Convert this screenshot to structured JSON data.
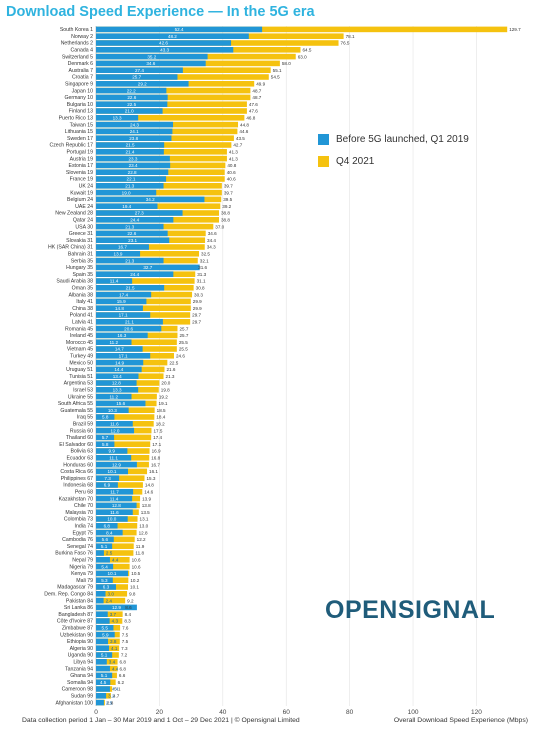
{
  "header": {
    "title": "Download Speed Experience — In the 5G era"
  },
  "legend": {
    "items": [
      {
        "label": "Before 5G launched, Q1 2019",
        "color": "#2196d6",
        "icon": "square-swatch"
      },
      {
        "label": "Q4 2021",
        "color": "#f5c20f",
        "icon": "square-swatch"
      }
    ]
  },
  "logo": {
    "text": "OPENSIGNAL",
    "color": "#1f5c7a"
  },
  "footer": {
    "note": "Data collection period 1 Jan – 30 Mar 2019 and 1 Oct – 29 Dec 2021 | © Opensignal Limited"
  },
  "chart_data": {
    "type": "bar",
    "orientation": "horizontal",
    "title": "Download Speed Experience — In the 5G era",
    "xlabel": "Overall Download Speed Experience (Mbps)",
    "ylabel": "",
    "xlim": [
      0,
      135
    ],
    "xticks": [
      0,
      20,
      40,
      60,
      80,
      100,
      120
    ],
    "grid": true,
    "legend_position": "right",
    "categories": [
      "South Korea 1",
      "Norway 2",
      "Netherlands 2",
      "Canada 4",
      "Switzerland 5",
      "Denmark 6",
      "Australia 7",
      "Croatia 7",
      "Singapore 9",
      "Japan 10",
      "Germany 10",
      "Bulgaria 10",
      "Finland 13",
      "Puerto Rico 13",
      "Taiwan 15",
      "Lithuania 15",
      "Sweden 17",
      "Czech Republic 17",
      "Portugal 19",
      "Austria 19",
      "Estonia 17",
      "Slovenia 19",
      "France 19",
      "UK 24",
      "Kuwait 19",
      "Belgium 24",
      "UAE 24",
      "New Zealand 28",
      "Qatar 24",
      "USA 30",
      "Greece 31",
      "Slovakia 31",
      "HK (SAR China) 31",
      "Bahrain 31",
      "Serbia 35",
      "Hungary 35",
      "Spain 35",
      "Saudi Arabia 38",
      "Oman 35",
      "Albania 38",
      "Italy 41",
      "China 38",
      "Poland 41",
      "Latvia 41",
      "Romania 45",
      "Ireland 45",
      "Morocco 45",
      "Vietnam 45",
      "Turkey 49",
      "Mexico 50",
      "Uruguay 51",
      "Tunisia 51",
      "Argentina 53",
      "Israel 53",
      "Ukraine 55",
      "South Africa 55",
      "Guatemala 55",
      "Iraq 55",
      "Brazil 59",
      "Russia 60",
      "Thailand 60",
      "El Salvador 60",
      "Bolivia 63",
      "Ecuador 63",
      "Honduras 60",
      "Costa Rica 66",
      "Philippines 67",
      "Indonesia 68",
      "Peru 68",
      "Kazakhstan 70",
      "Chile 70",
      "Malaysia 70",
      "Colombia 73",
      "India 74",
      "Egypt 75",
      "Cambodia 76",
      "Senegal 74",
      "Burkina Faso 76",
      "Nepal 79",
      "Nigeria 79",
      "Kenya 79",
      "Mali 79",
      "Madagascar 79",
      "Dem. Rep. Congo 84",
      "Pakistan 84",
      "Sri Lanka 86",
      "Bangladesh 87",
      "Côte d'Ivoire 87",
      "Zimbabwe 87",
      "Uzbekistan 90",
      "Ethiopia 90",
      "Algeria 90",
      "Uganda 90",
      "Libya 94",
      "Tanzania 94",
      "Ghana 94",
      "Somalia 94",
      "Cameroon 98",
      "Sudan 99",
      "Afghanistan 100"
    ],
    "series": [
      {
        "name": "Before 5G launched, Q1 2019",
        "color": "#2196d6",
        "values": [
          52.4,
          48.2,
          42.6,
          43.3,
          35.2,
          34.6,
          27.4,
          25.7,
          29.2,
          22.2,
          22.6,
          22.5,
          21.0,
          13.3,
          24.3,
          24.1,
          23.8,
          21.5,
          21.4,
          23.3,
          23.4,
          22.8,
          22.1,
          21.3,
          19.0,
          34.2,
          19.4,
          27.3,
          24.4,
          21.3,
          22.6,
          23.1,
          16.7,
          13.9,
          21.3,
          32.7,
          24.4,
          11.4,
          21.5,
          17.4,
          15.9,
          14.8,
          17.1,
          21.1,
          20.6,
          16.3,
          11.2,
          14.7,
          17.1,
          14.9,
          14.4,
          13.4,
          12.8,
          13.3,
          11.2,
          15.6,
          10.3,
          5.8,
          11.6,
          12.0,
          5.7,
          5.8,
          9.9,
          11.1,
          12.9,
          10.1,
          7.3,
          6.9,
          11.7,
          11.4,
          12.8,
          11.6,
          10.0,
          6.8,
          8.4,
          5.6,
          5.1,
          2.5,
          4.4,
          5.4,
          10.1,
          5.3,
          6.3,
          3.0,
          2.4,
          12.9,
          3.7,
          4.3,
          5.5,
          5.9,
          3.8,
          4.1,
          5.1,
          3.4,
          4.4,
          5.1,
          4.5,
          4.4,
          3.2,
          2.5
        ]
      },
      {
        "name": "Q4 2021",
        "color": "#f5c20f",
        "values": [
          129.7,
          78.1,
          76.5,
          64.5,
          63.0,
          58.0,
          55.1,
          54.5,
          49.9,
          48.7,
          48.7,
          47.6,
          47.6,
          46.8,
          44.8,
          44.6,
          43.5,
          42.7,
          41.3,
          41.3,
          40.8,
          40.6,
          40.6,
          39.7,
          39.7,
          39.5,
          39.2,
          38.8,
          38.8,
          37.0,
          34.6,
          34.4,
          34.3,
          32.5,
          32.1,
          31.6,
          31.3,
          31.1,
          30.8,
          30.3,
          29.9,
          29.9,
          29.7,
          29.7,
          25.7,
          25.7,
          25.5,
          25.5,
          24.6,
          22.5,
          21.6,
          21.3,
          20.0,
          19.8,
          19.2,
          19.1,
          18.5,
          18.4,
          18.2,
          17.5,
          17.4,
          17.1,
          16.9,
          16.8,
          16.7,
          16.1,
          15.3,
          14.8,
          14.6,
          13.9,
          13.8,
          13.5,
          13.1,
          13.0,
          12.8,
          12.2,
          11.9,
          11.8,
          10.6,
          10.6,
          10.5,
          10.2,
          10.1,
          9.8,
          9.2,
          8.6,
          8.4,
          8.3,
          7.6,
          7.5,
          7.5,
          7.3,
          7.2,
          6.8,
          6.8,
          6.6,
          6.2,
          5.1,
          4.7,
          2.8
        ]
      }
    ]
  }
}
